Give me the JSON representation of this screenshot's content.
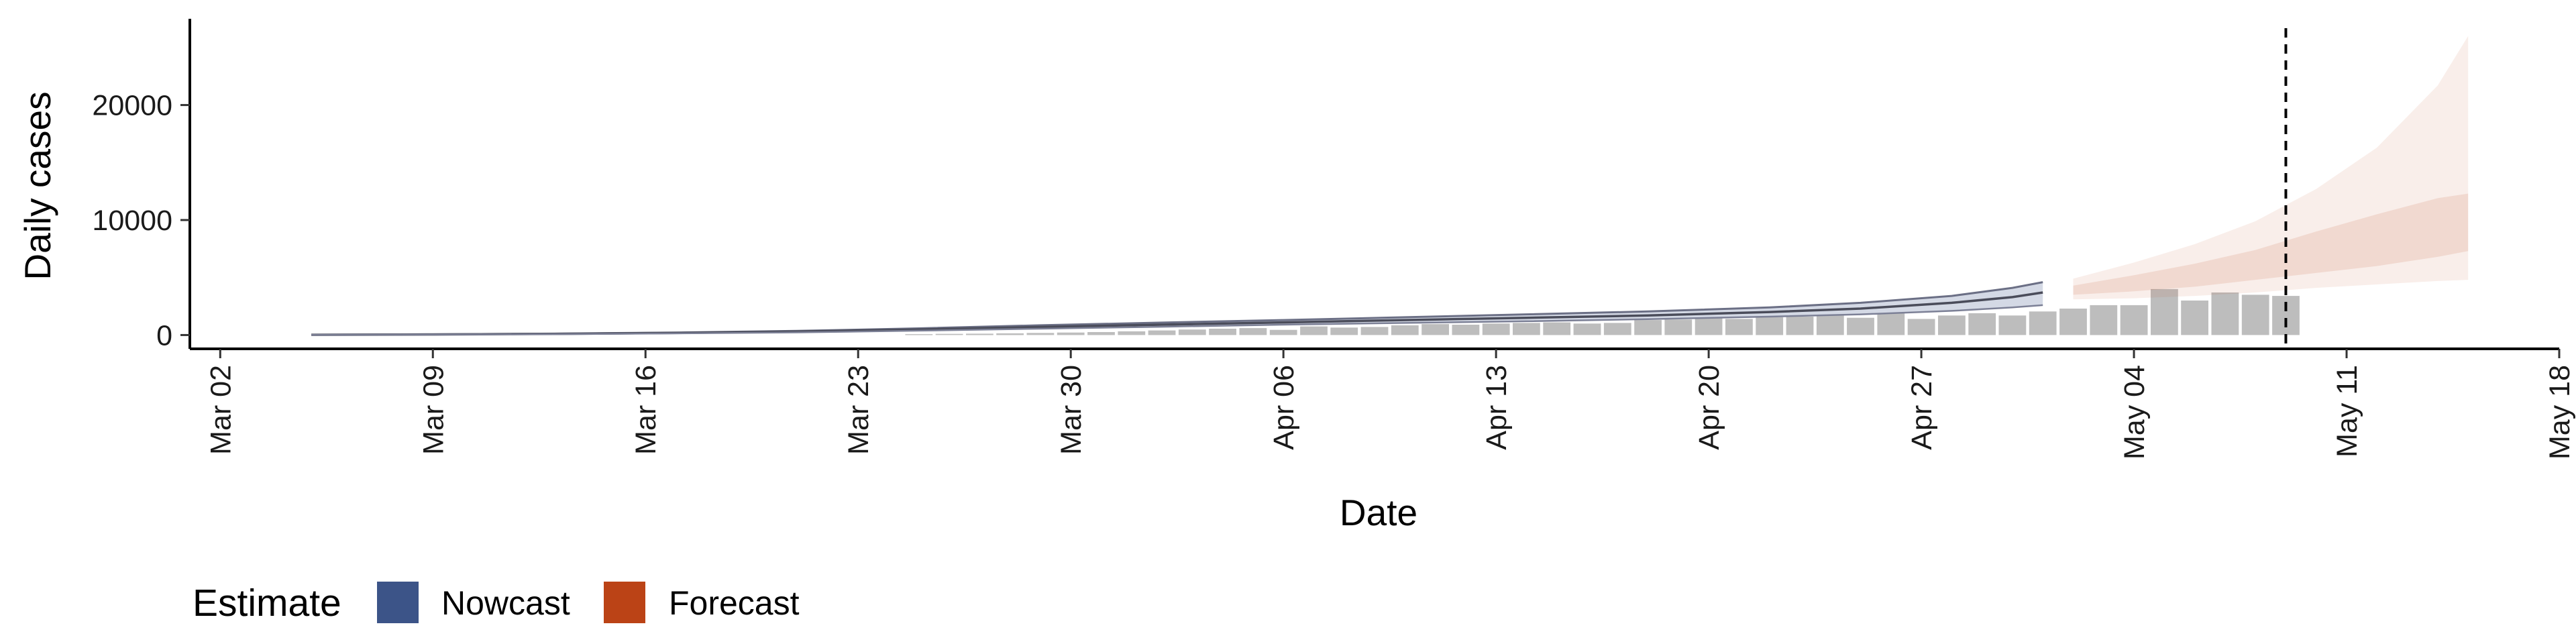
{
  "chart_data": {
    "type": "bar",
    "xlabel": "Date",
    "ylabel": "Daily cases",
    "x_axis": {
      "type": "date",
      "range": [
        "2020-03-01",
        "2020-05-18"
      ],
      "ticks": [
        {
          "date": "2020-03-02",
          "label": "Mar 02"
        },
        {
          "date": "2020-03-09",
          "label": "Mar 09"
        },
        {
          "date": "2020-03-16",
          "label": "Mar 16"
        },
        {
          "date": "2020-03-23",
          "label": "Mar 23"
        },
        {
          "date": "2020-03-30",
          "label": "Mar 30"
        },
        {
          "date": "2020-04-06",
          "label": "Apr 06"
        },
        {
          "date": "2020-04-13",
          "label": "Apr 13"
        },
        {
          "date": "2020-04-20",
          "label": "Apr 20"
        },
        {
          "date": "2020-04-27",
          "label": "Apr 27"
        },
        {
          "date": "2020-05-04",
          "label": "May 04"
        },
        {
          "date": "2020-05-11",
          "label": "May 11"
        },
        {
          "date": "2020-05-18",
          "label": "May 18"
        }
      ]
    },
    "y_axis": {
      "range": [
        -1200,
        27500
      ],
      "ticks": [
        {
          "value": 0,
          "label": "0"
        },
        {
          "value": 10000,
          "label": "10000"
        },
        {
          "value": 20000,
          "label": "20000"
        }
      ]
    },
    "reported_cases": {
      "color": "#bdbdbd",
      "dates": [
        "2020-03-25",
        "2020-03-26",
        "2020-03-27",
        "2020-03-28",
        "2020-03-29",
        "2020-03-30",
        "2020-03-31",
        "2020-04-01",
        "2020-04-02",
        "2020-04-03",
        "2020-04-04",
        "2020-04-05",
        "2020-04-06",
        "2020-04-07",
        "2020-04-08",
        "2020-04-09",
        "2020-04-10",
        "2020-04-11",
        "2020-04-12",
        "2020-04-13",
        "2020-04-14",
        "2020-04-15",
        "2020-04-16",
        "2020-04-17",
        "2020-04-18",
        "2020-04-19",
        "2020-04-20",
        "2020-04-21",
        "2020-04-22",
        "2020-04-23",
        "2020-04-24",
        "2020-04-25",
        "2020-04-26",
        "2020-04-27",
        "2020-04-28",
        "2020-04-29",
        "2020-04-30",
        "2020-05-01",
        "2020-05-02",
        "2020-05-03",
        "2020-05-04",
        "2020-05-05",
        "2020-05-06",
        "2020-05-07",
        "2020-05-08",
        "2020-05-09"
      ],
      "values": [
        80,
        100,
        120,
        150,
        180,
        220,
        260,
        320,
        400,
        480,
        550,
        600,
        450,
        750,
        650,
        700,
        850,
        950,
        900,
        1000,
        1050,
        1100,
        1000,
        1050,
        1300,
        1350,
        1500,
        1400,
        1550,
        1600,
        1700,
        1500,
        1900,
        1400,
        1700,
        1900,
        1700,
        2050,
        2300,
        2600,
        2600,
        4000,
        3000,
        3700,
        3500,
        3400
      ]
    },
    "series": [
      {
        "name": "Nowcast",
        "color": "#3c5488",
        "dates": [
          "2020-03-05",
          "2020-03-09",
          "2020-03-13",
          "2020-03-17",
          "2020-03-21",
          "2020-03-25",
          "2020-03-29",
          "2020-04-02",
          "2020-04-06",
          "2020-04-10",
          "2020-04-14",
          "2020-04-18",
          "2020-04-22",
          "2020-04-25",
          "2020-04-28",
          "2020-04-30",
          "2020-05-01"
        ],
        "median": [
          20,
          50,
          100,
          180,
          300,
          480,
          700,
          900,
          1100,
          1300,
          1500,
          1700,
          2000,
          2300,
          2800,
          3300,
          3700
        ],
        "lower": [
          15,
          40,
          80,
          140,
          230,
          380,
          550,
          720,
          900,
          1050,
          1200,
          1380,
          1600,
          1800,
          2100,
          2400,
          2600
        ],
        "upper": [
          25,
          60,
          120,
          220,
          360,
          580,
          850,
          1080,
          1300,
          1550,
          1800,
          2050,
          2400,
          2800,
          3400,
          4100,
          4600
        ]
      },
      {
        "name": "Forecast",
        "color": "#bb4316",
        "dates": [
          "2020-05-02",
          "2020-05-04",
          "2020-05-06",
          "2020-05-08",
          "2020-05-10",
          "2020-05-12",
          "2020-05-14",
          "2020-05-15"
        ],
        "median": [
          3900,
          4500,
          5200,
          6000,
          7200,
          8600,
          10500,
          11300
        ],
        "lower_inner": [
          3500,
          3800,
          4200,
          4800,
          5400,
          6000,
          6800,
          7300
        ],
        "upper_inner": [
          4300,
          5200,
          6200,
          7400,
          9000,
          10500,
          11900,
          12300
        ],
        "lower_outer": [
          3100,
          3200,
          3400,
          3700,
          4100,
          4400,
          4700,
          4800
        ],
        "upper_outer": [
          4900,
          6300,
          7900,
          9900,
          12700,
          16300,
          21700,
          26000
        ]
      }
    ],
    "vline_date": "2020-05-09",
    "legend": {
      "title": "Estimate",
      "position": "bottom",
      "items": [
        {
          "label": "Nowcast",
          "color": "#3c5488"
        },
        {
          "label": "Forecast",
          "color": "#bb4316"
        }
      ]
    }
  }
}
